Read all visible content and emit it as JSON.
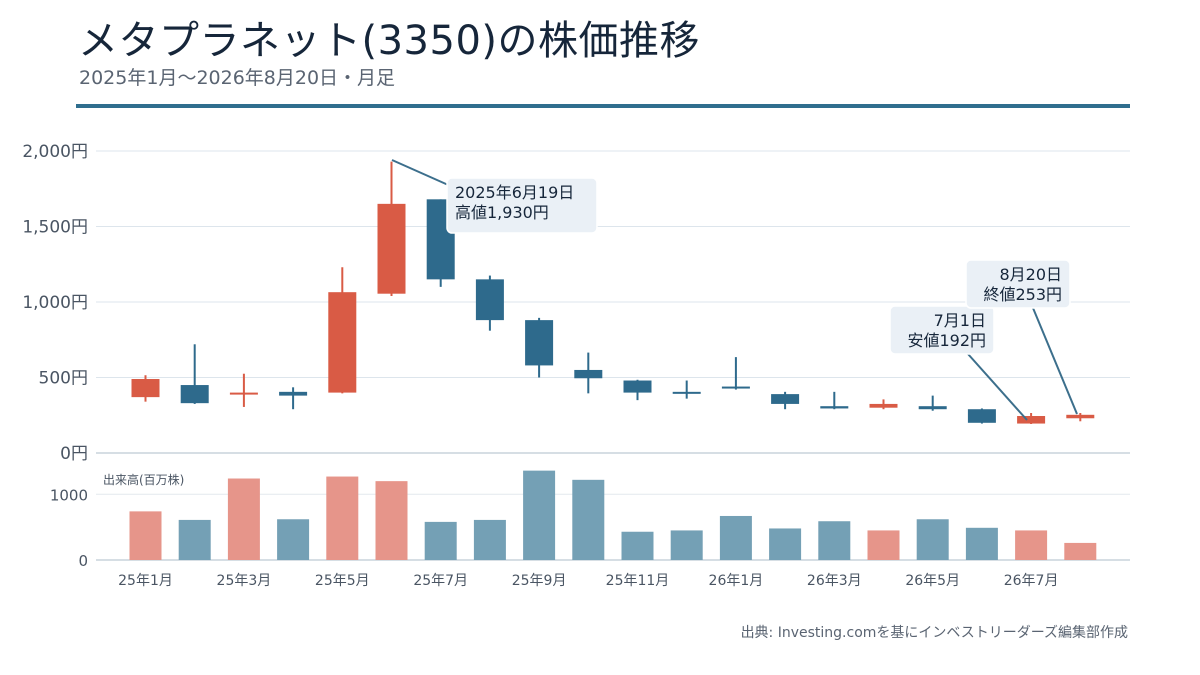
{
  "title": "メタプラネット(3350)の株価推移",
  "subtitle": "2025年1月〜2026年8月20日・月足",
  "source": "出典: Investing.comを基にインベストリーダーズ編集部作成",
  "colors": {
    "up": "#d95b45",
    "down": "#2e6a8c",
    "volume_up": "#e6958a",
    "volume_down": "#74a0b5",
    "rule": "#2f6e8e"
  },
  "chart_data": {
    "type": "candlestick",
    "unit": "円",
    "price_axis": {
      "ticks": [
        0,
        500,
        1000,
        1500,
        2000
      ],
      "labels": [
        "0円",
        "500円",
        "1,000円",
        "1,500円",
        "2,000円"
      ],
      "ylim": [
        0,
        2000
      ]
    },
    "volume_axis": {
      "label": "出来高(百万株)",
      "ticks": [
        0,
        1000
      ],
      "labels": [
        "0",
        "1000"
      ],
      "ylim": [
        0,
        1400
      ]
    },
    "x_labels": [
      "25年1月",
      "25年3月",
      "25年5月",
      "25年7月",
      "25年9月",
      "25年11月",
      "26年1月",
      "26年3月",
      "26年5月",
      "26年7月"
    ],
    "x_label_every": 2,
    "grid": true,
    "months": [
      "25年1月",
      "25年2月",
      "25年3月",
      "25年4月",
      "25年5月",
      "25年6月",
      "25年7月",
      "25年8月",
      "25年9月",
      "25年10月",
      "25年11月",
      "25年12月",
      "26年1月",
      "26年2月",
      "26年3月",
      "26年4月",
      "26年5月",
      "26年6月",
      "26年7月",
      "26年8月"
    ],
    "candles": [
      {
        "open": 370,
        "high": 515,
        "low": 340,
        "close": 490
      },
      {
        "open": 450,
        "high": 720,
        "low": 325,
        "close": 330
      },
      {
        "open": 390,
        "high": 525,
        "low": 305,
        "close": 400
      },
      {
        "open": 405,
        "high": 435,
        "low": 290,
        "close": 380
      },
      {
        "open": 400,
        "high": 1230,
        "low": 395,
        "close": 1065
      },
      {
        "open": 1055,
        "high": 1930,
        "low": 1040,
        "close": 1650
      },
      {
        "open": 1680,
        "high": 1680,
        "low": 1100,
        "close": 1150
      },
      {
        "open": 1150,
        "high": 1175,
        "low": 810,
        "close": 880
      },
      {
        "open": 880,
        "high": 895,
        "low": 500,
        "close": 580
      },
      {
        "open": 550,
        "high": 665,
        "low": 395,
        "close": 495
      },
      {
        "open": 480,
        "high": 485,
        "low": 350,
        "close": 400
      },
      {
        "open": 405,
        "high": 480,
        "low": 360,
        "close": 395
      },
      {
        "open": 440,
        "high": 635,
        "low": 420,
        "close": 430
      },
      {
        "open": 390,
        "high": 405,
        "low": 290,
        "close": 325
      },
      {
        "open": 310,
        "high": 405,
        "low": 290,
        "close": 295
      },
      {
        "open": 300,
        "high": 355,
        "low": 290,
        "close": 325
      },
      {
        "open": 310,
        "high": 380,
        "low": 280,
        "close": 290
      },
      {
        "open": 290,
        "high": 295,
        "low": 195,
        "close": 200
      },
      {
        "open": 195,
        "high": 265,
        "low": 192,
        "close": 245
      },
      {
        "open": 230,
        "high": 265,
        "low": 210,
        "close": 253
      }
    ],
    "volume": [
      740,
      610,
      1240,
      620,
      1270,
      1200,
      580,
      610,
      1360,
      1220,
      430,
      450,
      670,
      480,
      590,
      450,
      620,
      490,
      450,
      260
    ],
    "annotations": [
      {
        "index": 5,
        "value": 1930,
        "lines": [
          "2025年6月19日",
          "高値1,930円"
        ]
      },
      {
        "index": 18,
        "value": 192,
        "lines": [
          "7月1日",
          "安値192円"
        ]
      },
      {
        "index": 19,
        "value": 253,
        "lines": [
          "8月20日",
          "終値253円"
        ]
      }
    ]
  }
}
